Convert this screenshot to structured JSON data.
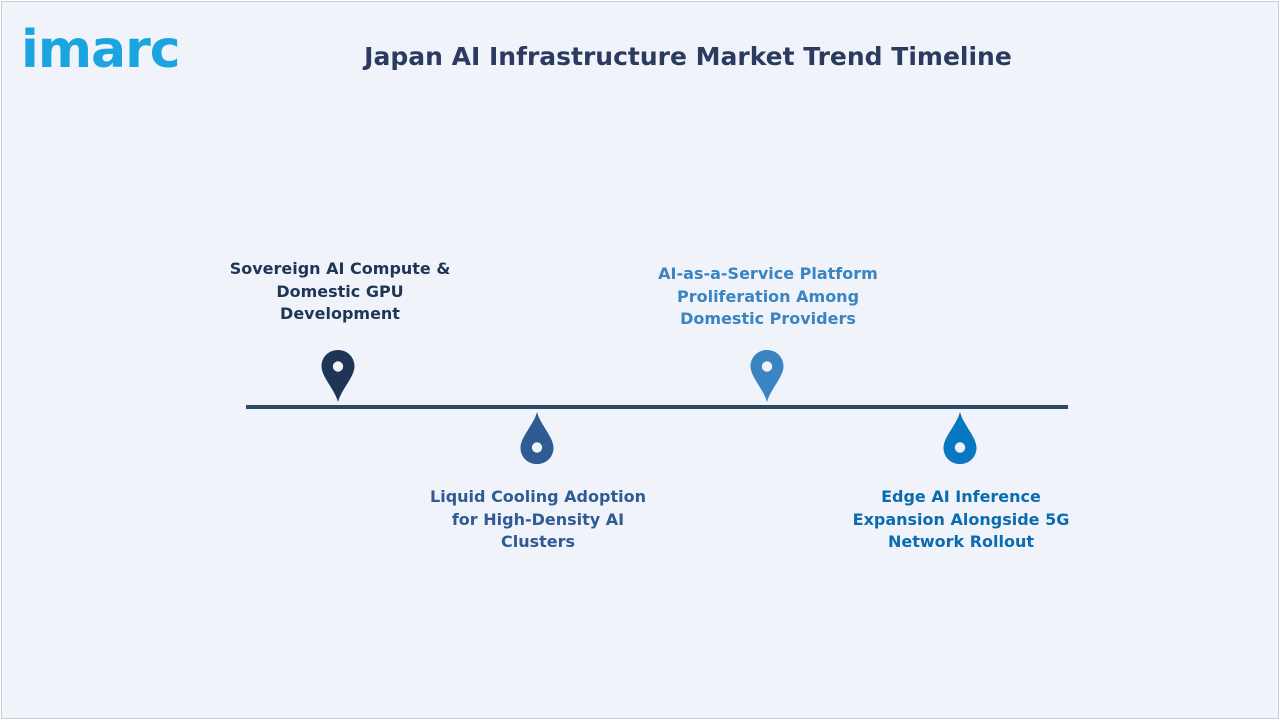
{
  "colors": {
    "brand": "#1ba5e0",
    "title": "#2b3a5e",
    "line": "#2b4a63",
    "pin_1": "#1f3556",
    "pin_2": "#2f5b95",
    "pin_3": "#3a84c2",
    "pin_4": "#0a78c1",
    "label_1": "#1f3556",
    "label_2": "#2f5b95",
    "label_3": "#3a84c2",
    "label_4": "#0a6bb0"
  },
  "logo": {
    "text": "imarc",
    "icon": "imarc-logo"
  },
  "title": "Japan AI Infrastructure Market Trend Timeline",
  "timeline": {
    "items": [
      {
        "label": "Sovereign AI Compute & Domestic GPU Development",
        "position": "above",
        "icon": "map-pin-icon"
      },
      {
        "label": "Liquid Cooling Adoption for High-Density AI Clusters",
        "position": "below",
        "icon": "drop-pin-icon"
      },
      {
        "label": "AI-as-a-Service Platform Proliferation Among Domestic Providers",
        "position": "above",
        "icon": "map-pin-icon"
      },
      {
        "label": "Edge AI Inference Expansion Alongside 5G Network Rollout",
        "position": "below",
        "icon": "drop-pin-icon"
      }
    ]
  }
}
